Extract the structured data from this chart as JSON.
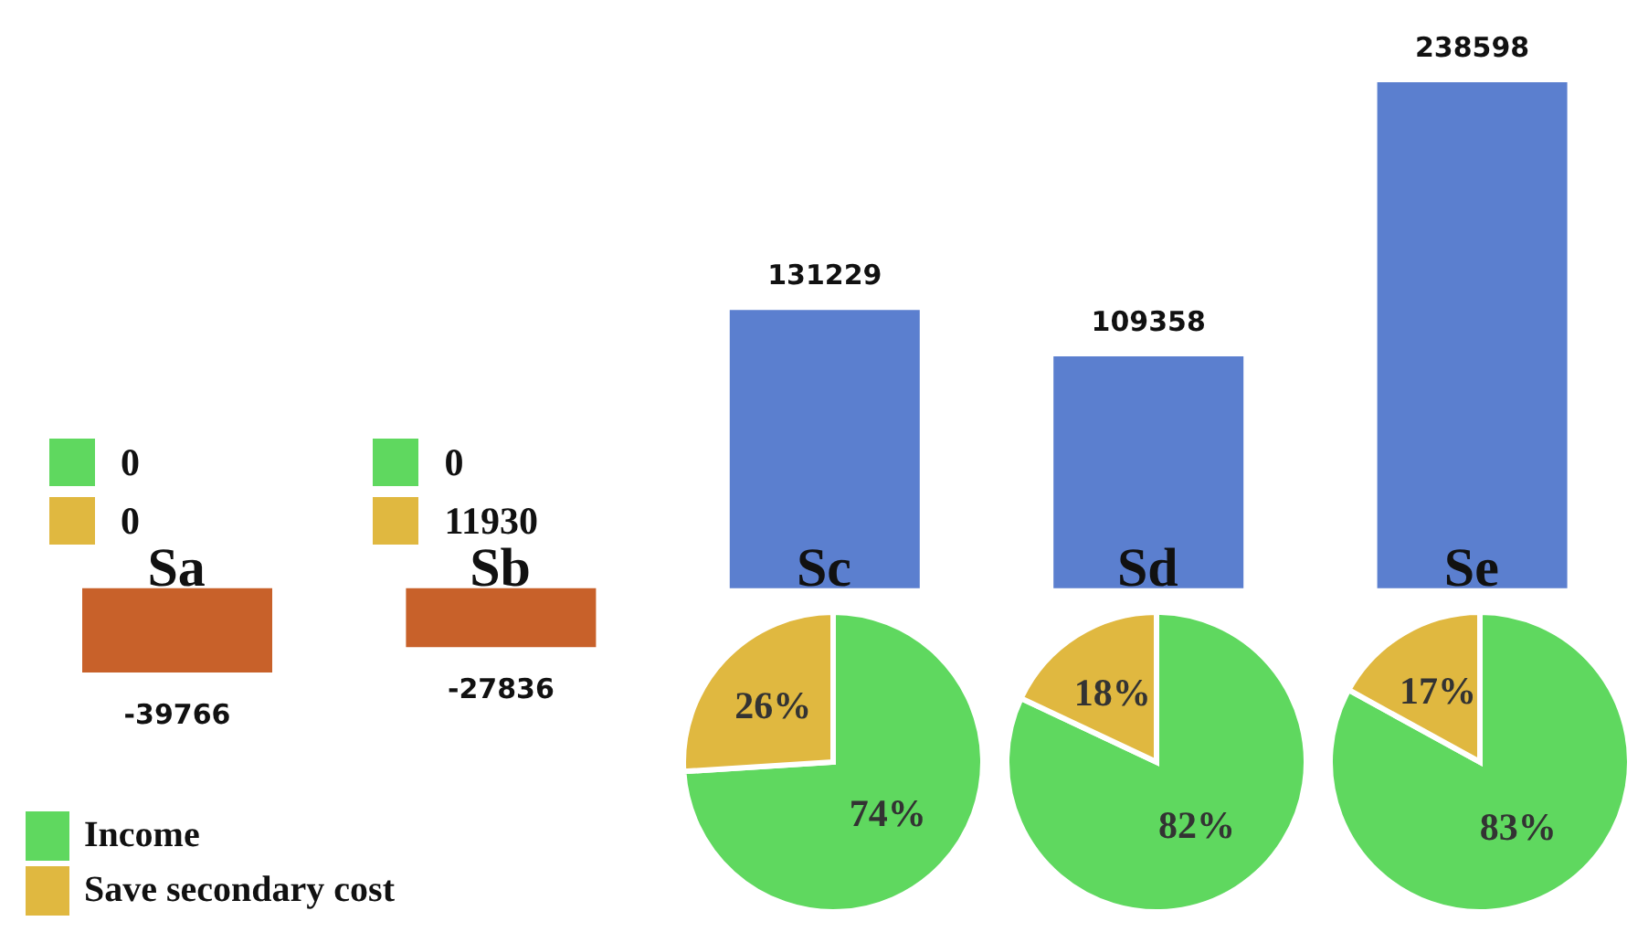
{
  "chart_data": [
    {
      "type": "bar",
      "categories": [
        "Sa",
        "Sb",
        "Sc",
        "Sd",
        "Se"
      ],
      "values": [
        -39766,
        -27836,
        131229,
        109358,
        238598
      ],
      "colors": [
        "#c8612a",
        "#c8612a",
        "#5b7fcf",
        "#5b7fcf",
        "#5b7fcf"
      ],
      "data_labels": true
    },
    {
      "type": "other",
      "values": [
        0,
        0
      ],
      "colors": [
        "#5fd85f",
        "#e0b840"
      ],
      "data_labels": true
    },
    {
      "type": "other",
      "values": [
        0,
        11930
      ],
      "colors": [
        "#5fd85f",
        "#e0b840"
      ],
      "data_labels": true
    },
    {
      "type": "pie",
      "categories": [
        "Income",
        "Save secondary cost"
      ],
      "values": [
        74,
        26
      ],
      "value_labels": [
        "74%",
        "26%"
      ],
      "colors": [
        "#5fd85f",
        "#e0b840"
      ],
      "legend": "bottom left"
    },
    {
      "type": "pie",
      "values": [
        82,
        18
      ],
      "value_labels": [
        "82%",
        "18%"
      ],
      "colors": [
        "#5fd85f",
        "#e0b840"
      ]
    },
    {
      "type": "pie",
      "values": [
        83,
        17
      ],
      "value_labels": [
        "83%",
        "17%"
      ],
      "colors": [
        "#5fd85f",
        "#e0b840"
      ]
    }
  ]
}
